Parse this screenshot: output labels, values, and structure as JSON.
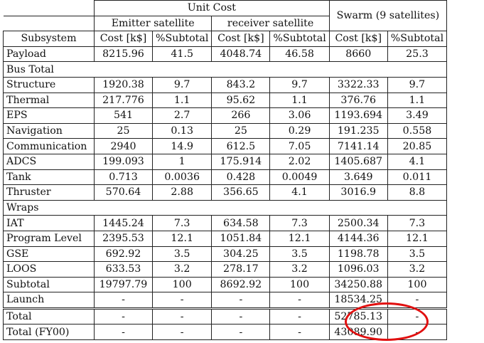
{
  "header": {
    "unit_cost": "Unit Cost",
    "emitter": "Emitter satellite",
    "receiver": "receiver satellite",
    "swarm": "Swarm (9 satellites)",
    "col_subsystem": "Subsystem",
    "col_cost": "Cost [k$]",
    "col_pct": "%Subtotal"
  },
  "rows": [
    {
      "type": "data",
      "label": "Payload",
      "v": [
        "8215.96",
        "41.5",
        "4048.74",
        "46.58",
        "8660",
        "25.3"
      ]
    },
    {
      "type": "section",
      "label": "Bus Total"
    },
    {
      "type": "data",
      "label": "Structure",
      "v": [
        "1920.38",
        "9.7",
        "843.2",
        "9.7",
        "3322.33",
        "9.7"
      ]
    },
    {
      "type": "data",
      "label": "Thermal",
      "v": [
        "217.776",
        "1.1",
        "95.62",
        "1.1",
        "376.76",
        "1.1"
      ]
    },
    {
      "type": "data",
      "label": "EPS",
      "v": [
        "541",
        "2.7",
        "266",
        "3.06",
        "1193.694",
        "3.49"
      ]
    },
    {
      "type": "data",
      "label": "Navigation",
      "v": [
        "25",
        "0.13",
        "25",
        "0.29",
        "191.235",
        "0.558"
      ]
    },
    {
      "type": "data",
      "label": "Communication",
      "v": [
        "2940",
        "14.9",
        "612.5",
        "7.05",
        "7141.14",
        "20.85"
      ]
    },
    {
      "type": "data",
      "label": "ADCS",
      "v": [
        "199.093",
        "1",
        "175.914",
        "2.02",
        "1405.687",
        "4.1"
      ]
    },
    {
      "type": "data",
      "label": "Tank",
      "v": [
        "0.713",
        "0.0036",
        "0.428",
        "0.0049",
        "3.649",
        "0.011"
      ]
    },
    {
      "type": "data",
      "label": "Thruster",
      "v": [
        "570.64",
        "2.88",
        "356.65",
        "4.1",
        "3016.9",
        "8.8"
      ]
    },
    {
      "type": "section",
      "label": "Wraps"
    },
    {
      "type": "data",
      "label": "IAT",
      "v": [
        "1445.24",
        "7.3",
        "634.58",
        "7.3",
        "2500.34",
        "7.3"
      ]
    },
    {
      "type": "data",
      "label": "Program Level",
      "v": [
        "2395.53",
        "12.1",
        "1051.84",
        "12.1",
        "4144.36",
        "12.1"
      ]
    },
    {
      "type": "data",
      "label": "GSE",
      "v": [
        "692.92",
        "3.5",
        "304.25",
        "3.5",
        "1198.78",
        "3.5"
      ]
    },
    {
      "type": "data",
      "label": "LOOS",
      "v": [
        "633.53",
        "3.2",
        "278.17",
        "3.2",
        "1096.03",
        "3.2"
      ]
    },
    {
      "type": "data",
      "label": "Subtotal",
      "v": [
        "19797.79",
        "100",
        "8692.92",
        "100",
        "34250.88",
        "100"
      ]
    },
    {
      "type": "data",
      "label": "Launch",
      "v": [
        "-",
        "-",
        "-",
        "-",
        "18534.25",
        "-"
      ]
    },
    {
      "type": "total",
      "label": "Total",
      "v": [
        "-",
        "-",
        "-",
        "-",
        "52785.13",
        "-"
      ]
    },
    {
      "type": "data",
      "label": "Total (FY00)",
      "v": [
        "-",
        "-",
        "-",
        "-",
        "43089.90",
        "-"
      ]
    }
  ],
  "annotation": {
    "color": "#e11010",
    "shape": "ellipse",
    "highlights": "Total swarm cost"
  }
}
